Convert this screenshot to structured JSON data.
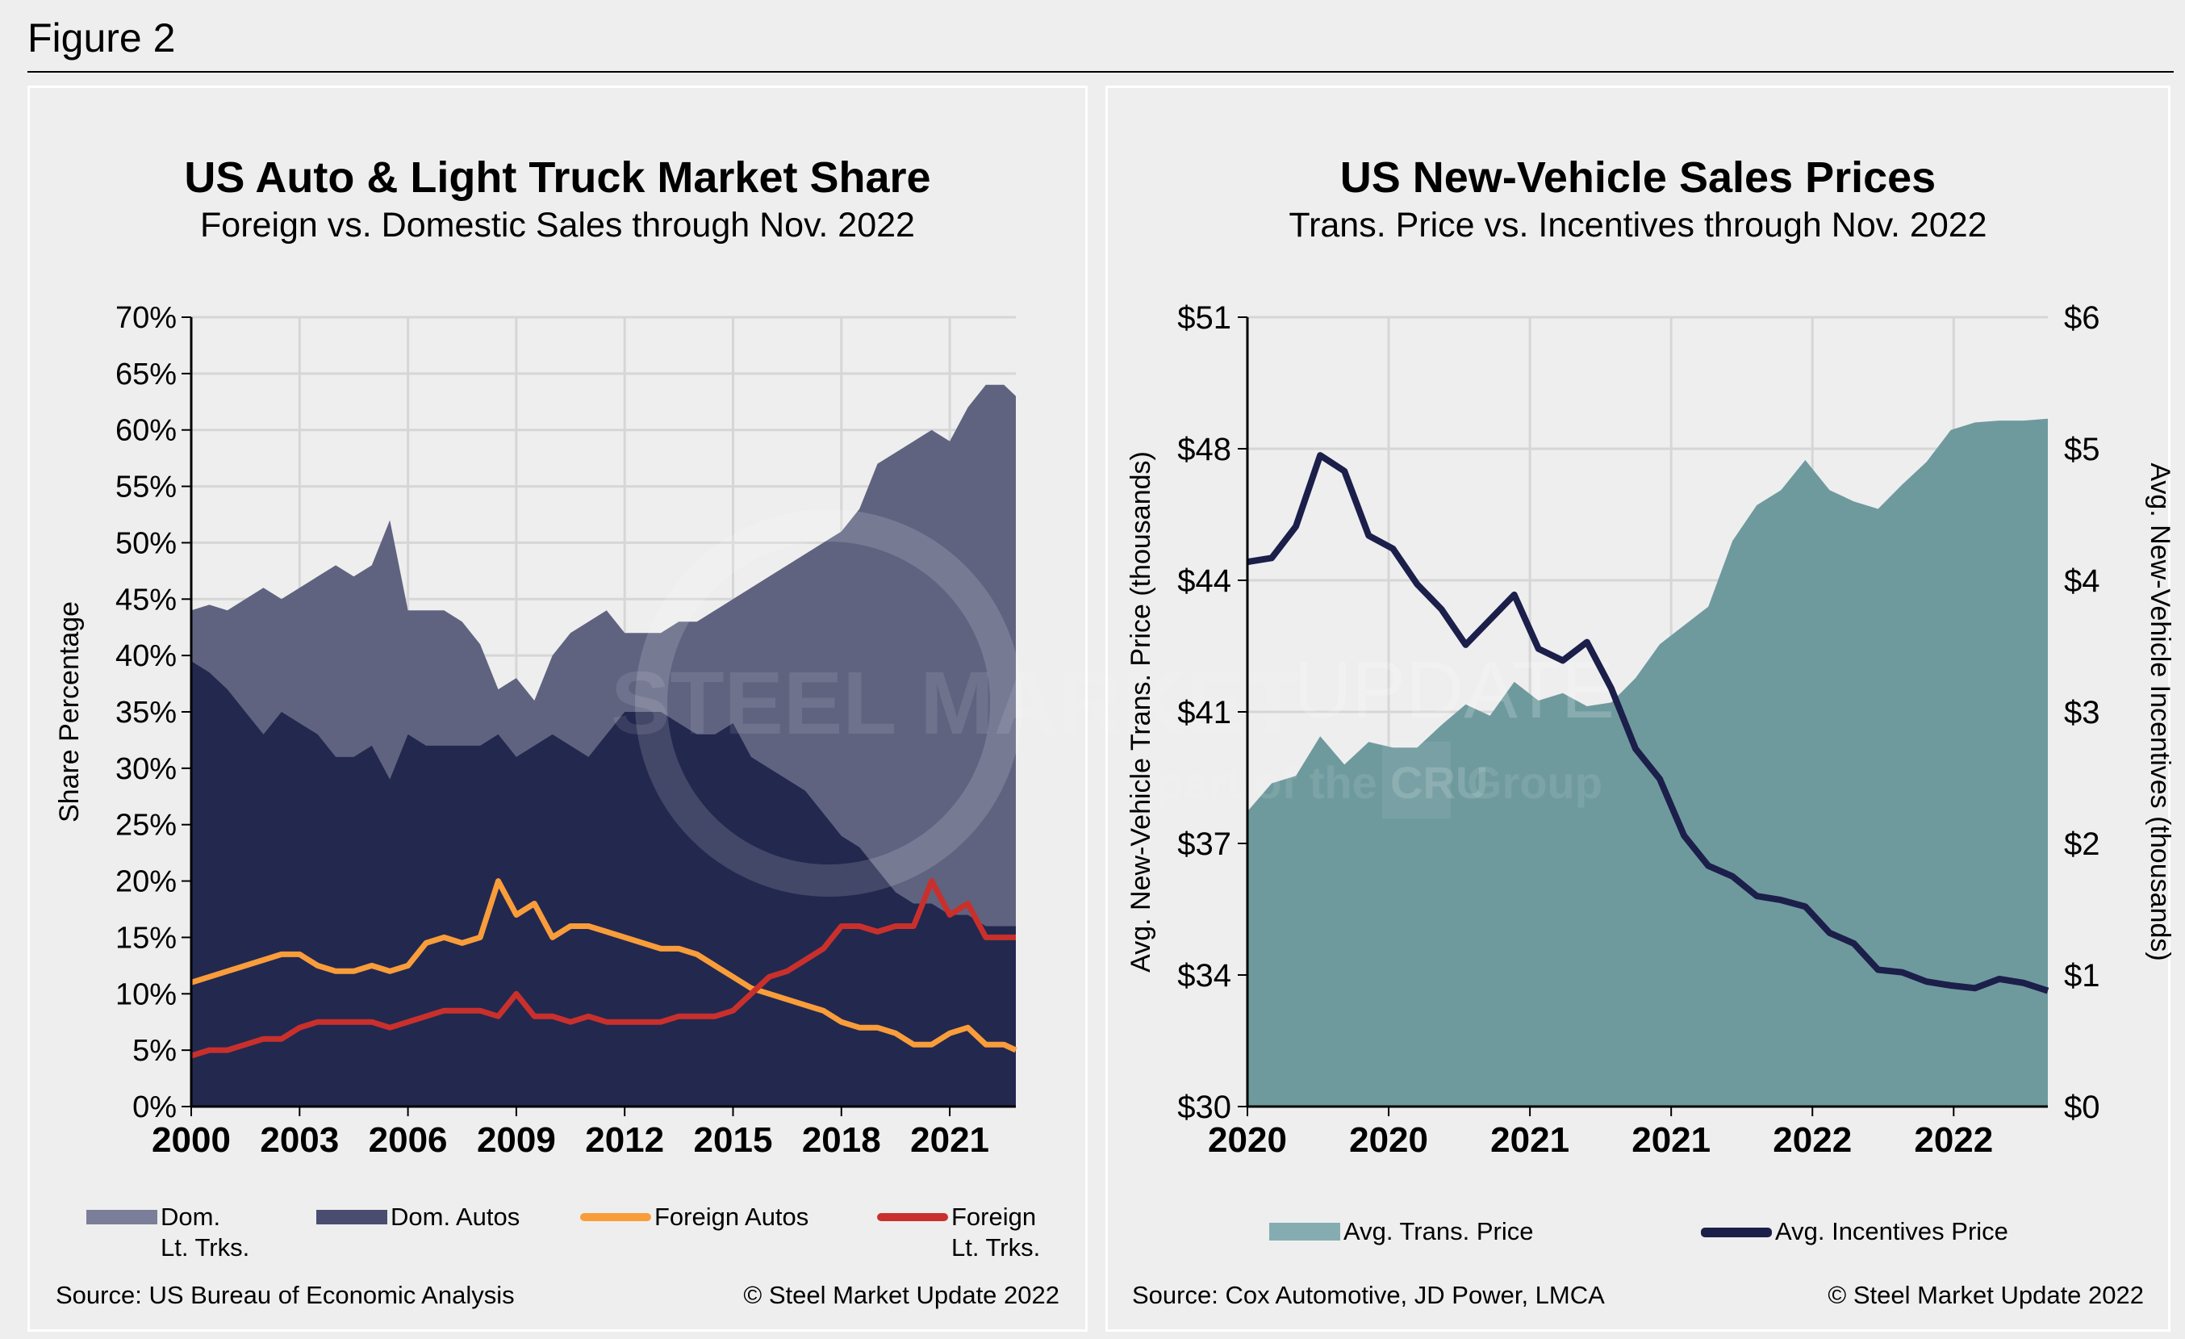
{
  "figure_title": "Figure 2",
  "watermark": {
    "line1_bold": "STEEL MARKET",
    "line1_light": "UPDATE",
    "line2": "part of the",
    "logo": "CRU",
    "line2_end": "Group"
  },
  "chart_data": [
    {
      "type": "area",
      "title": "US Auto & Light Truck Market Share",
      "subtitle": "Foreign vs. Domestic Sales through Nov. 2022",
      "ylabel": "Share Percentage",
      "xlabel": "",
      "ylim": [
        0,
        70
      ],
      "xlim": [
        2000,
        2022.83
      ],
      "y_ticks": [
        "0%",
        "5%",
        "10%",
        "15%",
        "20%",
        "25%",
        "30%",
        "35%",
        "40%",
        "45%",
        "50%",
        "55%",
        "60%",
        "65%",
        "70%"
      ],
      "x_ticks": [
        "2000",
        "2003",
        "2006",
        "2009",
        "2012",
        "2015",
        "2018",
        "2021"
      ],
      "grid": true,
      "legend_placement": "bottom",
      "x": [
        2000,
        2000.5,
        2001,
        2001.5,
        2002,
        2002.5,
        2003,
        2003.5,
        2004,
        2004.5,
        2005,
        2005.5,
        2006,
        2006.5,
        2007,
        2007.5,
        2008,
        2008.5,
        2009,
        2009.5,
        2010,
        2010.5,
        2011,
        2011.5,
        2012,
        2012.5,
        2013,
        2013.5,
        2014,
        2014.5,
        2015,
        2015.5,
        2016,
        2016.5,
        2017,
        2017.5,
        2018,
        2018.5,
        2019,
        2019.5,
        2020,
        2020.5,
        2021,
        2021.5,
        2022,
        2022.5,
        2022.83
      ],
      "series": [
        {
          "name": "Dom. Lt. Trks.",
          "kind": "area",
          "color": "#5f6380",
          "values": [
            44,
            44.5,
            44,
            45,
            46,
            45,
            46,
            47,
            48,
            47,
            48,
            52,
            44,
            44,
            44,
            43,
            41,
            37,
            38,
            36,
            40,
            42,
            43,
            44,
            42,
            42,
            42,
            43,
            43,
            44,
            45,
            46,
            47,
            48,
            49,
            50,
            51,
            53,
            57,
            58,
            59,
            60,
            59,
            62,
            64,
            64,
            63
          ]
        },
        {
          "name": "Dom. Autos",
          "kind": "area",
          "color": "#23284f",
          "values": [
            39.5,
            38.5,
            37,
            35,
            33,
            35,
            34,
            33,
            31,
            31,
            32,
            29,
            33,
            32,
            32,
            32,
            32,
            33,
            31,
            32,
            33,
            32,
            31,
            33,
            35,
            35,
            35,
            34,
            33,
            33,
            34,
            31,
            30,
            29,
            28,
            26,
            24,
            23,
            21,
            19,
            18,
            18,
            17,
            17,
            16,
            16,
            16
          ]
        },
        {
          "name": "Foreign Autos",
          "kind": "line",
          "color": "#f99d3a",
          "values": [
            11,
            11.5,
            12,
            12.5,
            13,
            13.5,
            13.5,
            12.5,
            12,
            12,
            12.5,
            12,
            12.5,
            14.5,
            15,
            14.5,
            15,
            20,
            17,
            18,
            15,
            16,
            16,
            15.5,
            15,
            14.5,
            14,
            14,
            13.5,
            12.5,
            11.5,
            10.5,
            10,
            9.5,
            9,
            8.5,
            7.5,
            7,
            7,
            6.5,
            5.5,
            5.5,
            6.5,
            7,
            5.5,
            5.5,
            5
          ]
        },
        {
          "name": "Foreign Lt. Trks.",
          "kind": "line",
          "color": "#c9302c",
          "values": [
            4.5,
            5,
            5,
            5.5,
            6,
            6,
            7,
            7.5,
            7.5,
            7.5,
            7.5,
            7,
            7.5,
            8,
            8.5,
            8.5,
            8.5,
            8,
            10,
            8,
            8,
            7.5,
            8,
            7.5,
            7.5,
            7.5,
            7.5,
            8,
            8,
            8,
            8.5,
            10,
            11.5,
            12,
            13,
            14,
            16,
            16,
            15.5,
            16,
            16,
            20,
            17,
            18,
            15,
            15,
            15
          ]
        }
      ],
      "legend": [
        {
          "line1": "Dom.",
          "line2": "Lt. Trks."
        },
        {
          "line1": "Dom. Autos",
          "line2": ""
        },
        {
          "line1": "Foreign Autos",
          "line2": ""
        },
        {
          "line1": "Foreign",
          "line2": "Lt. Trks."
        }
      ],
      "source": "Source: US Bureau of Economic Analysis",
      "copyright": "© Steel Market Update 2022"
    },
    {
      "type": "area",
      "title": "US New-Vehicle Sales Prices",
      "subtitle": "Trans. Price vs. Incentives through Nov. 2022",
      "ylabel": "Avg. New-Vehicle Trans. Price (thousands)",
      "y2label": "Avg. New-Vehicle Incentives (thousands)",
      "xlabel": "",
      "ylim": [
        30,
        51
      ],
      "y2lim": [
        0,
        6
      ],
      "y_ticks": [
        "$30",
        "$34",
        "$37",
        "$41",
        "$44",
        "$48",
        "$51"
      ],
      "y2_ticks": [
        "$0",
        "$1",
        "$2",
        "$3",
        "$4",
        "$5",
        "$6"
      ],
      "x_ticks": [
        "2020",
        "2020",
        "2021",
        "2021",
        "2022",
        "2022"
      ],
      "grid": true,
      "legend_placement": "bottom",
      "series": [
        {
          "name": "Avg. Trans. Price",
          "kind": "area",
          "axis": "left",
          "color": "#6e9a9e",
          "values": [
            37.85,
            38.6,
            38.8,
            39.85,
            39.1,
            39.7,
            39.55,
            39.55,
            40.15,
            40.7,
            40.4,
            41.3,
            40.8,
            41.0,
            40.65,
            40.75,
            41.4,
            42.3,
            42.8,
            43.3,
            45.05,
            46.0,
            46.4,
            47.2,
            46.4,
            46.1,
            45.9,
            46.55,
            47.15,
            48.0,
            48.2,
            48.25,
            48.25,
            48.3
          ]
        },
        {
          "name": "Avg. Incentives Price",
          "kind": "line",
          "axis": "right",
          "color": "#1b1f4a",
          "values": [
            4.14,
            4.17,
            4.41,
            4.95,
            4.83,
            4.34,
            4.24,
            3.97,
            3.78,
            3.51,
            3.7,
            3.89,
            3.48,
            3.39,
            3.53,
            3.18,
            2.72,
            2.49,
            2.06,
            1.83,
            1.75,
            1.6,
            1.57,
            1.52,
            1.32,
            1.24,
            1.04,
            1.02,
            0.95,
            0.92,
            0.9,
            0.97,
            0.94,
            0.88
          ]
        }
      ],
      "legend": [
        {
          "line1": "Avg. Trans. Price",
          "line2": ""
        },
        {
          "line1": "Avg. Incentives Price",
          "line2": ""
        }
      ],
      "source": "Source: Cox Automotive, JD Power, LMCA",
      "copyright": "© Steel Market Update 2022"
    }
  ]
}
